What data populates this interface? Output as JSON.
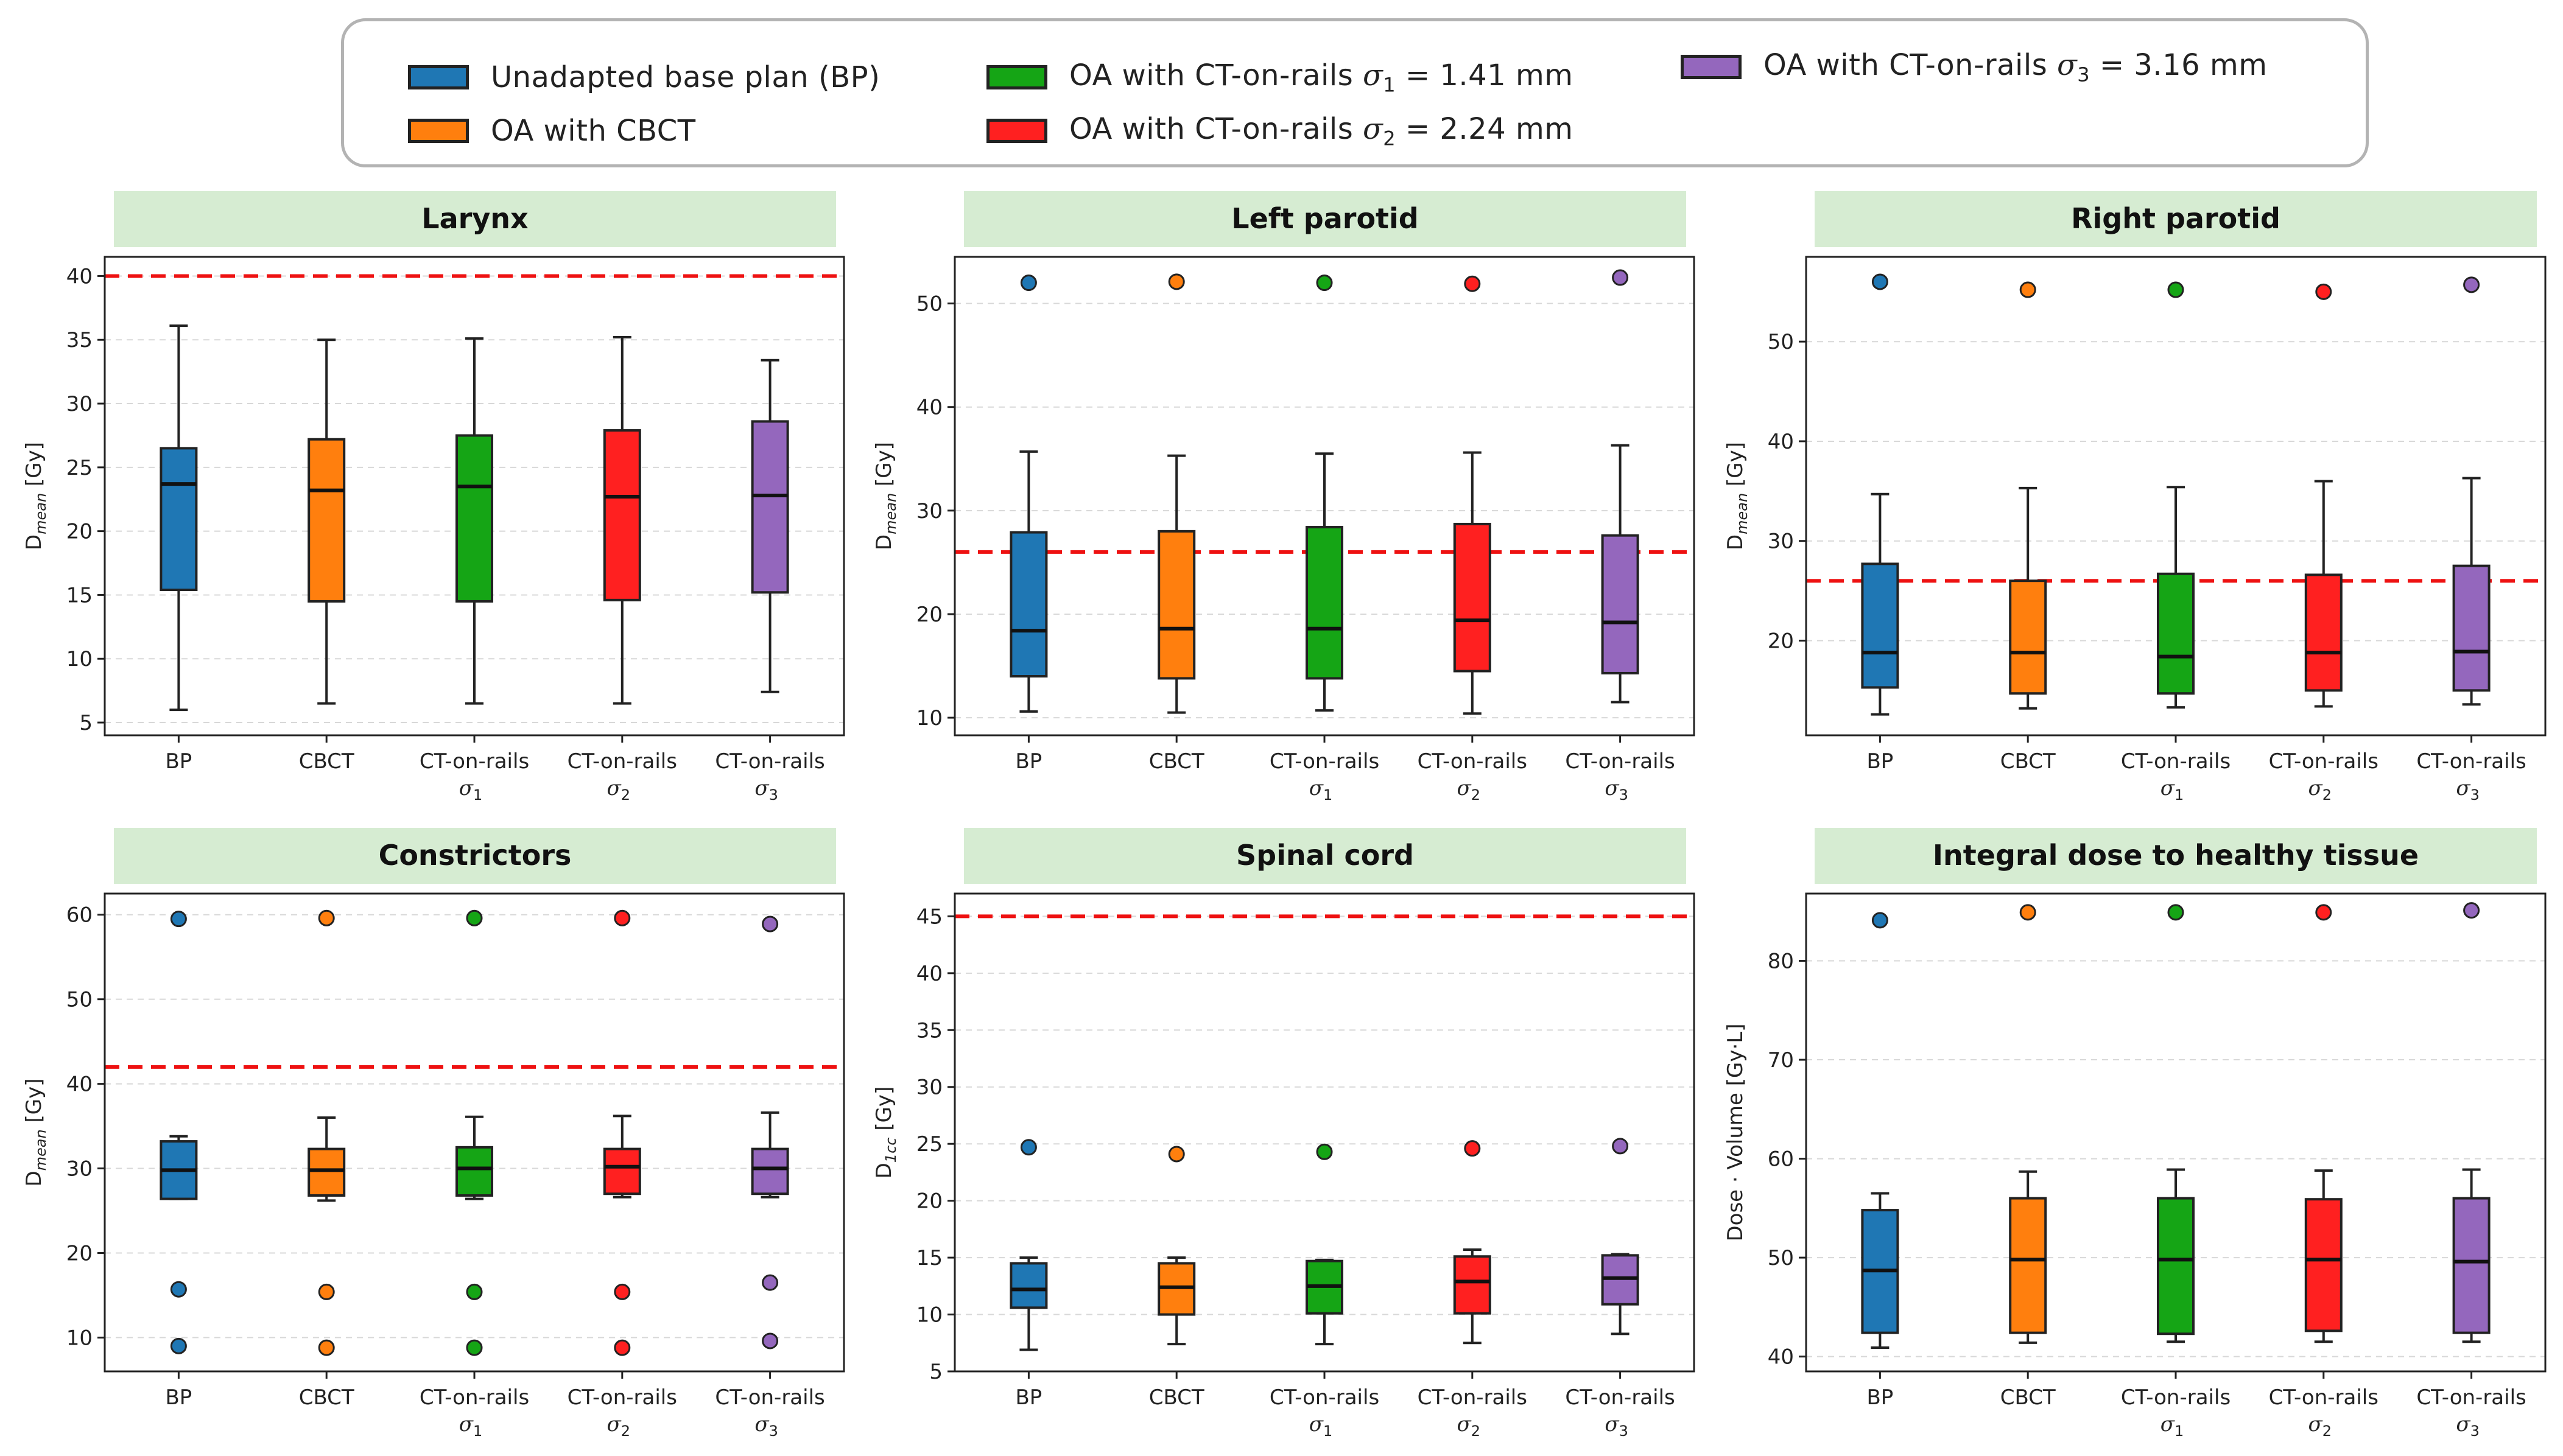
{
  "legend": {
    "items": [
      {
        "id": "bp",
        "label_main": "Unadapted base plan (BP)",
        "color": "#1f77b4"
      },
      {
        "id": "cbct",
        "label_main": "OA with CBCT",
        "color": "#ff7f0e"
      },
      {
        "id": "s1",
        "label_main": "OA with CT-on-rails ",
        "sigma": "σ",
        "sub": "1",
        "label_tail": " = 1.41 mm",
        "color": "#15a515"
      },
      {
        "id": "s2",
        "label_main": "OA with CT-on-rails ",
        "sigma": "σ",
        "sub": "2",
        "label_tail": " = 2.24 mm",
        "color": "#ff2020"
      },
      {
        "id": "s3",
        "label_main": "OA with CT-on-rails ",
        "sigma": "σ",
        "sub": "3",
        "label_tail": " = 3.16 mm",
        "color": "#9467bd"
      }
    ]
  },
  "category_labels": [
    {
      "line1": "BP",
      "line2": ""
    },
    {
      "line1": "CBCT",
      "line2": ""
    },
    {
      "line1": "CT-on-rails",
      "line2": "σ",
      "sub": "1"
    },
    {
      "line1": "CT-on-rails",
      "line2": "σ",
      "sub": "2"
    },
    {
      "line1": "CT-on-rails",
      "line2": "σ",
      "sub": "3"
    }
  ],
  "colors": [
    "#1f77b4",
    "#ff7f0e",
    "#15a515",
    "#ff2020",
    "#9467bd"
  ],
  "chart_data": [
    {
      "type": "box",
      "title": "Larynx",
      "ylabel": "D",
      "ylabel_sub": "mean",
      "ylabel_unit": " [Gy]",
      "ylim": [
        4,
        41.5
      ],
      "yticks": [
        5,
        10,
        15,
        20,
        25,
        30,
        35,
        40
      ],
      "threshold": 40,
      "boxes": [
        {
          "whislo": 6.0,
          "q1": 15.4,
          "med": 23.7,
          "q3": 26.5,
          "whishi": 36.1,
          "fliers": []
        },
        {
          "whislo": 6.5,
          "q1": 14.5,
          "med": 23.2,
          "q3": 27.2,
          "whishi": 35.0,
          "fliers": []
        },
        {
          "whislo": 6.5,
          "q1": 14.5,
          "med": 23.5,
          "q3": 27.5,
          "whishi": 35.1,
          "fliers": []
        },
        {
          "whislo": 6.5,
          "q1": 14.6,
          "med": 22.7,
          "q3": 27.9,
          "whishi": 35.2,
          "fliers": []
        },
        {
          "whislo": 7.4,
          "q1": 15.2,
          "med": 22.8,
          "q3": 28.6,
          "whishi": 33.4,
          "fliers": []
        }
      ]
    },
    {
      "type": "box",
      "title": "Left parotid",
      "ylabel": "D",
      "ylabel_sub": "mean",
      "ylabel_unit": " [Gy]",
      "ylim": [
        8.3,
        54.5
      ],
      "yticks": [
        10,
        20,
        30,
        40,
        50
      ],
      "threshold": 26,
      "boxes": [
        {
          "whislo": 10.6,
          "q1": 14.0,
          "med": 18.4,
          "q3": 27.9,
          "whishi": 35.7,
          "fliers": [
            52.0
          ]
        },
        {
          "whislo": 10.5,
          "q1": 13.8,
          "med": 18.6,
          "q3": 28.0,
          "whishi": 35.3,
          "fliers": [
            52.1
          ]
        },
        {
          "whislo": 10.7,
          "q1": 13.8,
          "med": 18.6,
          "q3": 28.4,
          "whishi": 35.5,
          "fliers": [
            52.0
          ]
        },
        {
          "whislo": 10.4,
          "q1": 14.5,
          "med": 19.4,
          "q3": 28.7,
          "whishi": 35.6,
          "fliers": [
            51.9
          ]
        },
        {
          "whislo": 11.5,
          "q1": 14.3,
          "med": 19.2,
          "q3": 27.6,
          "whishi": 36.3,
          "fliers": [
            52.5
          ]
        }
      ]
    },
    {
      "type": "box",
      "title": "Right parotid",
      "ylabel": "D",
      "ylabel_sub": "mean",
      "ylabel_unit": " [Gy]",
      "ylim": [
        10.5,
        58.5
      ],
      "yticks": [
        20,
        30,
        40,
        50
      ],
      "threshold": 26,
      "boxes": [
        {
          "whislo": 12.6,
          "q1": 15.3,
          "med": 18.8,
          "q3": 27.7,
          "whishi": 34.7,
          "fliers": [
            56.0
          ]
        },
        {
          "whislo": 13.2,
          "q1": 14.7,
          "med": 18.8,
          "q3": 26.0,
          "whishi": 35.3,
          "fliers": [
            55.2
          ]
        },
        {
          "whislo": 13.3,
          "q1": 14.7,
          "med": 18.4,
          "q3": 26.7,
          "whishi": 35.4,
          "fliers": [
            55.2
          ]
        },
        {
          "whislo": 13.4,
          "q1": 15.0,
          "med": 18.8,
          "q3": 26.6,
          "whishi": 36.0,
          "fliers": [
            55.0
          ]
        },
        {
          "whislo": 13.6,
          "q1": 15.0,
          "med": 18.9,
          "q3": 27.5,
          "whishi": 36.3,
          "fliers": [
            55.7
          ]
        }
      ]
    },
    {
      "type": "box",
      "title": "Constrictors",
      "ylabel": "D",
      "ylabel_sub": "mean",
      "ylabel_unit": " [Gy]",
      "ylim": [
        6.0,
        62.5
      ],
      "yticks": [
        10,
        20,
        30,
        40,
        50,
        60
      ],
      "threshold": 42,
      "boxes": [
        {
          "whislo": 26.4,
          "q1": 26.4,
          "med": 29.8,
          "q3": 33.2,
          "whishi": 33.8,
          "fliers": [
            59.5,
            15.7,
            9.0
          ]
        },
        {
          "whislo": 26.2,
          "q1": 26.8,
          "med": 29.8,
          "q3": 32.3,
          "whishi": 36.0,
          "fliers": [
            59.6,
            15.4,
            8.8
          ]
        },
        {
          "whislo": 26.4,
          "q1": 26.8,
          "med": 30.0,
          "q3": 32.5,
          "whishi": 36.1,
          "fliers": [
            59.6,
            15.4,
            8.8
          ]
        },
        {
          "whislo": 26.6,
          "q1": 27.0,
          "med": 30.2,
          "q3": 32.3,
          "whishi": 36.2,
          "fliers": [
            59.6,
            15.4,
            8.8
          ]
        },
        {
          "whislo": 26.6,
          "q1": 27.0,
          "med": 30.0,
          "q3": 32.3,
          "whishi": 36.6,
          "fliers": [
            58.9,
            16.5,
            9.6
          ]
        }
      ]
    },
    {
      "type": "box",
      "title": "Spinal cord",
      "ylabel": "D",
      "ylabel_sub": "1cc",
      "ylabel_unit": " [Gy]",
      "ylim": [
        5.0,
        47.0
      ],
      "yticks": [
        5,
        10,
        15,
        20,
        25,
        30,
        35,
        40,
        45
      ],
      "threshold": 45,
      "boxes": [
        {
          "whislo": 6.9,
          "q1": 10.6,
          "med": 12.2,
          "q3": 14.5,
          "whishi": 15.0,
          "fliers": [
            24.7
          ]
        },
        {
          "whislo": 7.4,
          "q1": 10.0,
          "med": 12.4,
          "q3": 14.5,
          "whishi": 15.0,
          "fliers": [
            24.1
          ]
        },
        {
          "whislo": 7.4,
          "q1": 10.1,
          "med": 12.5,
          "q3": 14.7,
          "whishi": 14.8,
          "fliers": [
            24.3
          ]
        },
        {
          "whislo": 7.5,
          "q1": 10.1,
          "med": 12.9,
          "q3": 15.1,
          "whishi": 15.7,
          "fliers": [
            24.6
          ]
        },
        {
          "whislo": 8.3,
          "q1": 10.9,
          "med": 13.2,
          "q3": 15.2,
          "whishi": 15.3,
          "fliers": [
            24.8
          ]
        }
      ]
    },
    {
      "type": "box",
      "title": "Integral dose to healthy tissue",
      "ylabel": "Dose · Volume [Gy·L]",
      "ylabel_sub": "",
      "ylabel_unit": "",
      "ylim": [
        38.5,
        86.8
      ],
      "yticks": [
        40,
        50,
        60,
        70,
        80
      ],
      "threshold": null,
      "boxes": [
        {
          "whislo": 40.9,
          "q1": 42.4,
          "med": 48.7,
          "q3": 54.8,
          "whishi": 56.5,
          "fliers": [
            84.1
          ]
        },
        {
          "whislo": 41.4,
          "q1": 42.4,
          "med": 49.8,
          "q3": 56.0,
          "whishi": 58.7,
          "fliers": [
            84.9
          ]
        },
        {
          "whislo": 41.5,
          "q1": 42.3,
          "med": 49.8,
          "q3": 56.0,
          "whishi": 58.9,
          "fliers": [
            84.9
          ]
        },
        {
          "whislo": 41.5,
          "q1": 42.6,
          "med": 49.8,
          "q3": 55.9,
          "whishi": 58.8,
          "fliers": [
            84.9
          ]
        },
        {
          "whislo": 41.5,
          "q1": 42.4,
          "med": 49.6,
          "q3": 56.0,
          "whishi": 58.9,
          "fliers": [
            85.1
          ]
        }
      ]
    }
  ]
}
